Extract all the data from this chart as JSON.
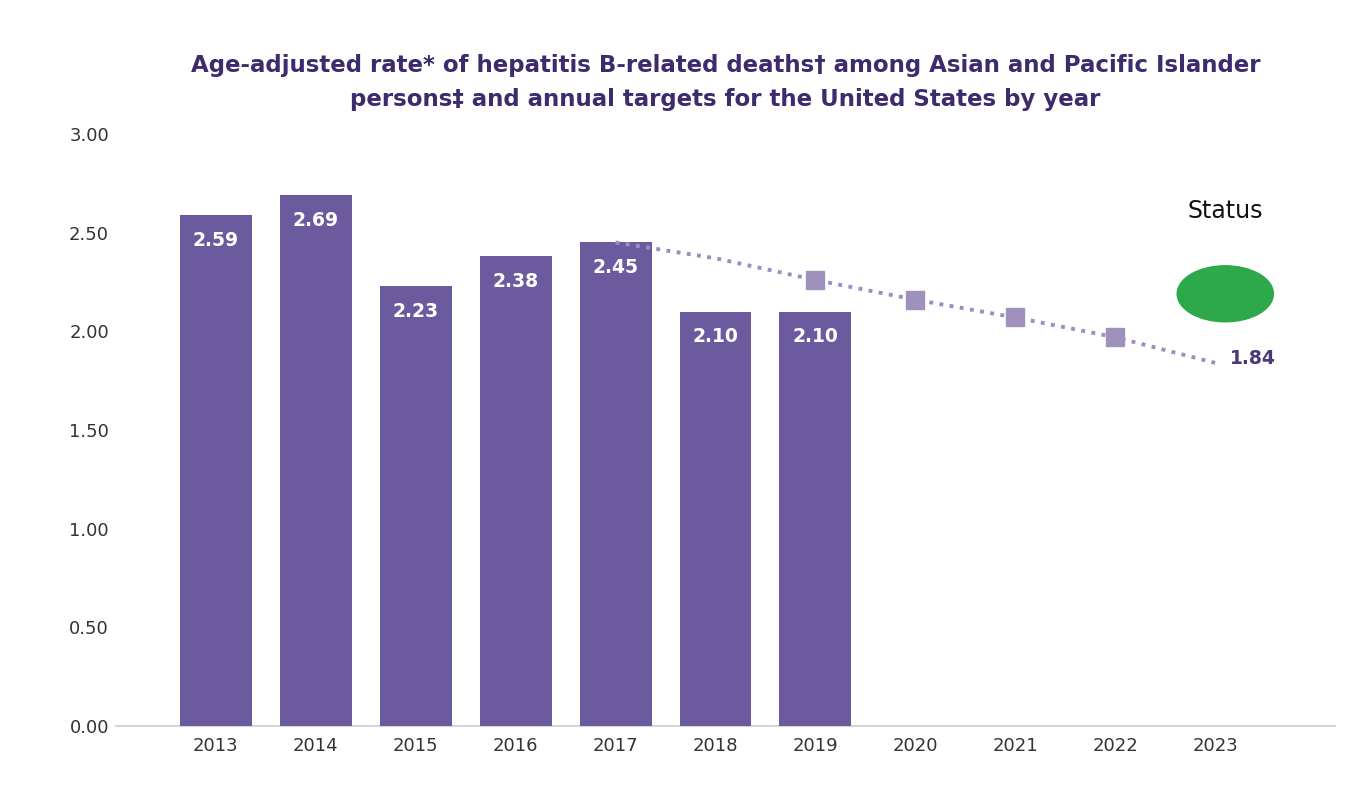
{
  "title_line1": "Age-adjusted rate* of hepatitis B-related deaths† among Asian and Pacific Islander",
  "title_line2": "persons‡ and annual targets for the United States by year",
  "bar_years": [
    2013,
    2014,
    2015,
    2016,
    2017,
    2018,
    2019
  ],
  "bar_values": [
    2.59,
    2.69,
    2.23,
    2.38,
    2.45,
    2.1,
    2.1
  ],
  "bar_color": "#6b5a9e",
  "bar_label_color": "#ffffff",
  "target_years": [
    2017,
    2018,
    2019,
    2020,
    2021,
    2022,
    2023
  ],
  "target_values": [
    2.45,
    2.37,
    2.26,
    2.16,
    2.07,
    1.97,
    1.84
  ],
  "target_marker_indices": [
    2,
    3,
    4,
    5
  ],
  "target_dot_color": "#9b8ec4",
  "target_marker_color": "#a090bc",
  "final_label": "1.84",
  "final_label_color": "#4a3878",
  "ylim": [
    0,
    3.0
  ],
  "yticks": [
    0.0,
    0.5,
    1.0,
    1.5,
    2.0,
    2.5,
    3.0
  ],
  "ytick_labels": [
    "0.00",
    "0.50",
    "1.00",
    "1.50",
    "2.00",
    "2.50",
    "3.00"
  ],
  "all_years": [
    2013,
    2014,
    2015,
    2016,
    2017,
    2018,
    2019,
    2020,
    2021,
    2022,
    2023
  ],
  "status_text": "Status",
  "background_color": "#ffffff",
  "title_color": "#3d2b6e",
  "axis_color": "#cccccc",
  "tick_color": "#333333",
  "green_color": "#2da84a"
}
